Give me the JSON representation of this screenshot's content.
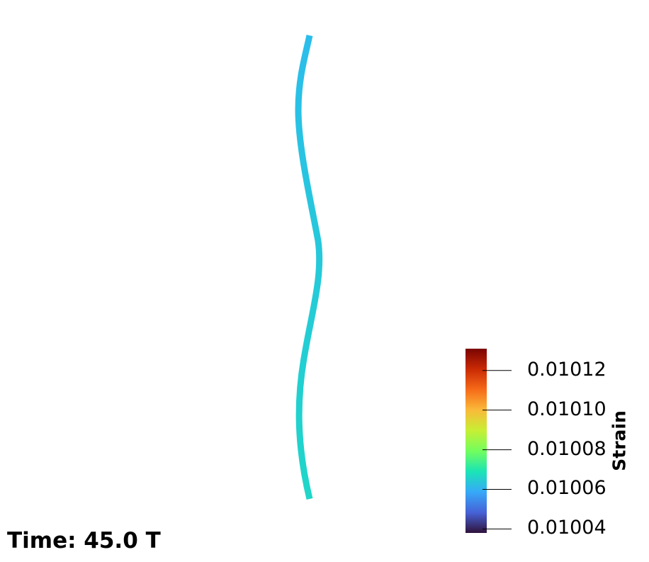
{
  "time_label": "Time: 45.0 T",
  "colorbar": {
    "title": "Strain",
    "range": [
      0.010038,
      0.010131
    ],
    "ticks": [
      "0.01012",
      "0.01010",
      "0.01008",
      "0.01006",
      "0.01004"
    ],
    "colormap": [
      "#30123b",
      "#4662d7",
      "#36a9f9",
      "#1ae4b6",
      "#72fe5e",
      "#c7ef34",
      "#faba39",
      "#f66b19",
      "#ca2a04",
      "#7a0403"
    ]
  },
  "filament": {
    "top_color": "#2bbdeb",
    "bottom_color": "#1fd6c8"
  }
}
